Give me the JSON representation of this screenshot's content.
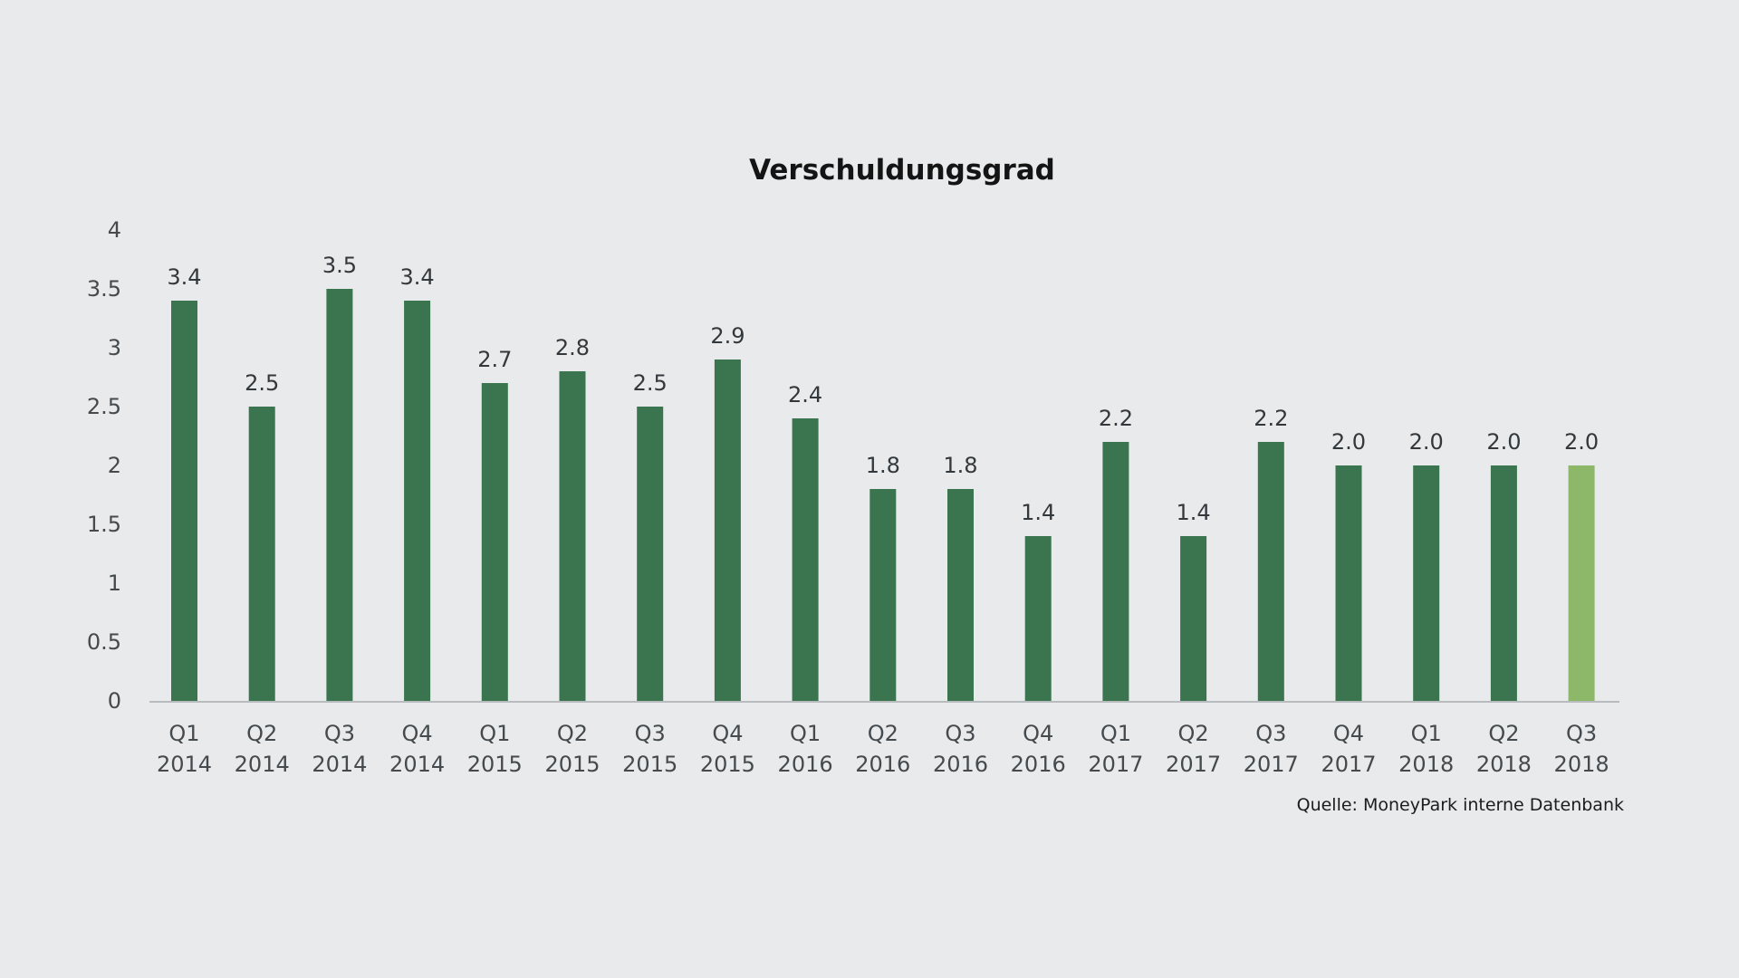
{
  "chart_data": {
    "type": "bar",
    "title": "Verschuldungsgrad",
    "xlabel": "",
    "ylabel": "",
    "ylim": [
      0,
      4
    ],
    "yticks": [
      "0",
      "0.5",
      "1",
      "1.5",
      "2",
      "2.5",
      "3",
      "3.5",
      "4"
    ],
    "grid": false,
    "legend": "none",
    "categories": [
      [
        "Q1",
        "2014"
      ],
      [
        "Q2",
        "2014"
      ],
      [
        "Q3",
        "2014"
      ],
      [
        "Q4",
        "2014"
      ],
      [
        "Q1",
        "2015"
      ],
      [
        "Q2",
        "2015"
      ],
      [
        "Q3",
        "2015"
      ],
      [
        "Q4",
        "2015"
      ],
      [
        "Q1",
        "2016"
      ],
      [
        "Q2",
        "2016"
      ],
      [
        "Q3",
        "2016"
      ],
      [
        "Q4",
        "2016"
      ],
      [
        "Q1",
        "2017"
      ],
      [
        "Q2",
        "2017"
      ],
      [
        "Q3",
        "2017"
      ],
      [
        "Q4",
        "2017"
      ],
      [
        "Q1",
        "2018"
      ],
      [
        "Q2",
        "2018"
      ],
      [
        "Q3",
        "2018"
      ]
    ],
    "values": [
      3.4,
      2.5,
      3.5,
      3.4,
      2.7,
      2.8,
      2.5,
      2.9,
      2.4,
      1.8,
      1.8,
      1.4,
      2.2,
      1.4,
      2.2,
      2.0,
      2.0,
      2.0,
      2.0
    ],
    "value_labels": [
      "3.4",
      "2.5",
      "3.5",
      "3.4",
      "2.7",
      "2.8",
      "2.5",
      "2.9",
      "2.4",
      "1.8",
      "1.8",
      "1.4",
      "2.2",
      "1.4",
      "2.2",
      "2.0",
      "2.0",
      "2.0",
      "2.0"
    ],
    "colors": {
      "bar": "#3a7550",
      "highlight": "#8db869",
      "axis": "#b8bcbf"
    },
    "highlight_index": 18,
    "source": "Quelle: MoneyPark interne Datenbank"
  }
}
